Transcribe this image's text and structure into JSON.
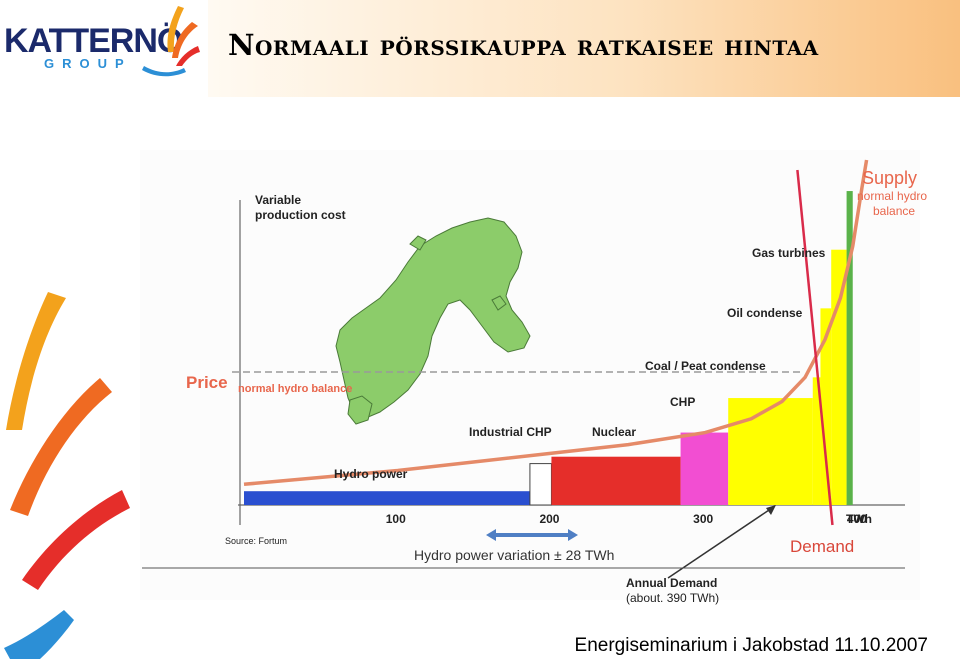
{
  "header": {
    "logo_name": "KATTERNÖ",
    "logo_group": "GROUP",
    "title": "Normaali pörssikauppa ratkaisee hintaa"
  },
  "footer": {
    "text": "Energiseminarium i Jakobstad 11.10.2007"
  },
  "colors": {
    "hydro": "#2a4fd0",
    "industrial_chp": "#ffffff",
    "nuclear": "#e52e2a",
    "chp": "#f24ed2",
    "coal_peat": "#ffff00",
    "oil": "#ffff00",
    "gas": "#5ab24a",
    "supply_curve": "#e58a68",
    "demand_line": "#d92b4a",
    "map_land": "#8ccc6a",
    "axis": "#555555"
  },
  "chart_data": {
    "type": "bar",
    "ylabel": "Variable production cost",
    "xlabel": "TWh",
    "x_ticks": [
      {
        "value": 100,
        "label": "100"
      },
      {
        "value": 200,
        "label": "200"
      },
      {
        "value": 300,
        "label": "300"
      },
      {
        "value": 400,
        "label": "400"
      }
    ],
    "x_unit_label": "TWh",
    "xlim": [
      0,
      430
    ],
    "ylim": [
      0,
      100
    ],
    "segments": [
      {
        "name": "Hydro power",
        "x_start": 0,
        "x_end": 186,
        "value": 4,
        "color": "#2a4fd0"
      },
      {
        "name": "Industrial CHP",
        "x_start": 186,
        "x_end": 200,
        "value": 12,
        "color": "#ffffff"
      },
      {
        "name": "Nuclear",
        "x_start": 200,
        "x_end": 284,
        "value": 14,
        "color": "#e52e2a"
      },
      {
        "name": "CHP",
        "x_start": 284,
        "x_end": 315,
        "value": 21,
        "color": "#f24ed2"
      },
      {
        "name": "Coal / Peat condense",
        "x_start": 315,
        "x_end": 370,
        "value": 31,
        "color": "#ffff00"
      },
      {
        "name": "Oil condense",
        "x_start": 370,
        "x_end": 375,
        "value": 37,
        "color": "#ffff00"
      },
      {
        "name": "Oil condense",
        "x_start": 375,
        "x_end": 382,
        "value": 57,
        "color": "#ffff00"
      },
      {
        "name": "Oil condense",
        "x_start": 382,
        "x_end": 392,
        "value": 74,
        "color": "#ffff00"
      },
      {
        "name": "Gas turbines",
        "x_start": 392,
        "x_end": 396,
        "value": 91,
        "color": "#5ab24a"
      }
    ],
    "supply_curve": [
      [
        0,
        6
      ],
      [
        50,
        8
      ],
      [
        100,
        10
      ],
      [
        150,
        12.5
      ],
      [
        200,
        15
      ],
      [
        250,
        17.5
      ],
      [
        300,
        21
      ],
      [
        330,
        25
      ],
      [
        350,
        30
      ],
      [
        365,
        37
      ],
      [
        378,
        48
      ],
      [
        388,
        60
      ],
      [
        396,
        75
      ],
      [
        402,
        92
      ],
      [
        405,
        100
      ]
    ],
    "demand_line": {
      "from": [
        360,
        50
      ],
      "to": [
        375,
        -10
      ]
    },
    "price_level": 48,
    "labels": {
      "supply": "Supply",
      "supply_sub": "normal hydro balance",
      "price": "Price",
      "price_sub": "normal hydro balance",
      "demand": "Demand",
      "annual_demand": "Annual Demand",
      "annual_demand_sub": "(about. 390 TWh)",
      "hydro_variation": "Hydro power variation ± 28 TWh",
      "source": "Source: Fortum"
    }
  }
}
